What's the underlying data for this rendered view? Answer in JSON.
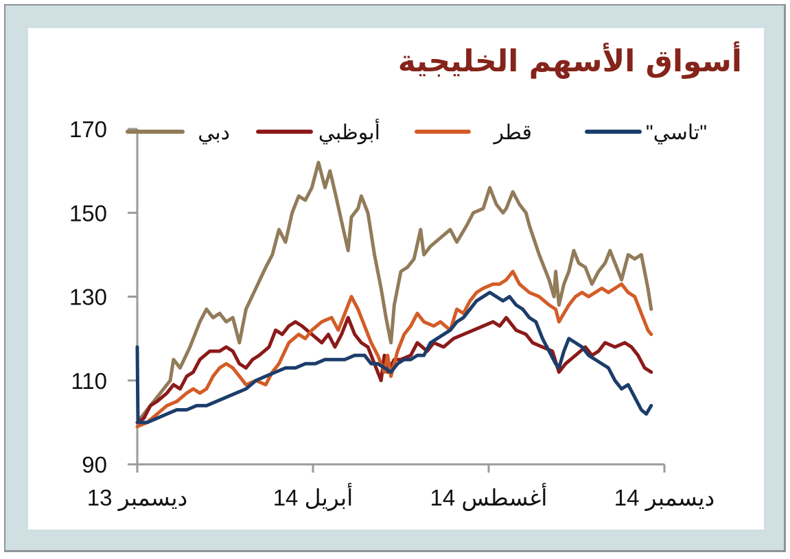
{
  "title": "أسواق الأسهم الخليجية",
  "colors": {
    "frame_bg": "#cfdfe2",
    "frame_border": "#8e9396",
    "title": "#85241a",
    "axis": "#9a9a9a"
  },
  "chart_data": {
    "type": "line",
    "title": "أسواق الأسهم الخليجية",
    "xlabel": "",
    "ylabel": "",
    "ylim": [
      90,
      170
    ],
    "yticks": [
      90,
      110,
      130,
      150,
      170
    ],
    "xticks": [
      "ديسمبر 13",
      "أبريل 14",
      "أغسطس 14",
      "ديسمبر 14"
    ],
    "x_range_months": [
      0,
      12
    ],
    "grid": false,
    "legend_position": "top",
    "series": [
      {
        "name": "دبي",
        "color": "#917b59",
        "points": [
          [
            0,
            100
          ],
          [
            0.2,
            102
          ],
          [
            0.5,
            105
          ],
          [
            0.8,
            108
          ],
          [
            1.0,
            110
          ],
          [
            1.1,
            115
          ],
          [
            1.3,
            113
          ],
          [
            1.6,
            118
          ],
          [
            1.9,
            124
          ],
          [
            2.1,
            127
          ],
          [
            2.3,
            125
          ],
          [
            2.5,
            126
          ],
          [
            2.7,
            124
          ],
          [
            2.9,
            125
          ],
          [
            3.1,
            119
          ],
          [
            3.3,
            127
          ],
          [
            3.6,
            132
          ],
          [
            3.9,
            137
          ],
          [
            4.1,
            140
          ],
          [
            4.3,
            146
          ],
          [
            4.5,
            143
          ],
          [
            4.7,
            150
          ],
          [
            4.9,
            154
          ],
          [
            5.1,
            153
          ],
          [
            5.3,
            156
          ],
          [
            5.5,
            162
          ],
          [
            5.7,
            156
          ],
          [
            5.85,
            160
          ],
          [
            6.0,
            155
          ],
          [
            6.2,
            148
          ],
          [
            6.4,
            141
          ],
          [
            6.5,
            149
          ],
          [
            6.7,
            151
          ],
          [
            6.8,
            154
          ],
          [
            7.0,
            150
          ],
          [
            7.2,
            140
          ],
          [
            7.4,
            132
          ],
          [
            7.55,
            125
          ],
          [
            7.7,
            119
          ],
          [
            7.8,
            128
          ],
          [
            8.0,
            136
          ],
          [
            8.2,
            137
          ],
          [
            8.4,
            139
          ],
          [
            8.6,
            146
          ],
          [
            8.7,
            140
          ],
          [
            8.9,
            142
          ],
          [
            9.2,
            144
          ],
          [
            9.5,
            146
          ],
          [
            9.7,
            143
          ],
          [
            10.0,
            147
          ],
          [
            10.2,
            150
          ],
          [
            10.5,
            151
          ],
          [
            10.7,
            156
          ],
          [
            10.9,
            152
          ],
          [
            11.1,
            150
          ],
          [
            11.2,
            151
          ],
          [
            11.4,
            155
          ],
          [
            11.6,
            152
          ],
          [
            11.8,
            150
          ],
          [
            11.9,
            147
          ],
          [
            12.2,
            140
          ],
          [
            12.5,
            134
          ],
          [
            12.65,
            130
          ],
          [
            12.7,
            136
          ],
          [
            12.8,
            128
          ],
          [
            12.95,
            133
          ],
          [
            13.1,
            136
          ],
          [
            13.25,
            141
          ],
          [
            13.4,
            138
          ],
          [
            13.6,
            137
          ],
          [
            13.8,
            133
          ],
          [
            14.0,
            136
          ],
          [
            14.2,
            138
          ],
          [
            14.35,
            141
          ],
          [
            14.5,
            138
          ],
          [
            14.7,
            134
          ],
          [
            14.9,
            140
          ],
          [
            15.1,
            139
          ],
          [
            15.3,
            140
          ],
          [
            15.5,
            132
          ],
          [
            15.6,
            127
          ]
        ]
      },
      {
        "name": "أبوظبي",
        "color": "#8b1a19",
        "points": [
          [
            0,
            100
          ],
          [
            0.2,
            101
          ],
          [
            0.4,
            104
          ],
          [
            0.6,
            105
          ],
          [
            0.9,
            107
          ],
          [
            1.1,
            109
          ],
          [
            1.3,
            108
          ],
          [
            1.5,
            111
          ],
          [
            1.7,
            112
          ],
          [
            1.9,
            115
          ],
          [
            2.2,
            117
          ],
          [
            2.5,
            117
          ],
          [
            2.7,
            118
          ],
          [
            2.9,
            117
          ],
          [
            3.1,
            114
          ],
          [
            3.3,
            113
          ],
          [
            3.5,
            115
          ],
          [
            3.7,
            116
          ],
          [
            4.0,
            118
          ],
          [
            4.2,
            122
          ],
          [
            4.4,
            121
          ],
          [
            4.6,
            123
          ],
          [
            4.8,
            124
          ],
          [
            5.0,
            123
          ],
          [
            5.3,
            121
          ],
          [
            5.6,
            119
          ],
          [
            5.8,
            121
          ],
          [
            6.0,
            118
          ],
          [
            6.2,
            121
          ],
          [
            6.4,
            125
          ],
          [
            6.6,
            121
          ],
          [
            6.8,
            119
          ],
          [
            7.0,
            118
          ],
          [
            7.2,
            114
          ],
          [
            7.4,
            110
          ],
          [
            7.5,
            116
          ],
          [
            7.6,
            112
          ],
          [
            7.8,
            115
          ],
          [
            8.0,
            115
          ],
          [
            8.3,
            116
          ],
          [
            8.5,
            119
          ],
          [
            8.8,
            117
          ],
          [
            9.0,
            119
          ],
          [
            9.3,
            118
          ],
          [
            9.6,
            120
          ],
          [
            9.9,
            121
          ],
          [
            10.2,
            122
          ],
          [
            10.5,
            123
          ],
          [
            10.8,
            124
          ],
          [
            11.0,
            123
          ],
          [
            11.2,
            125
          ],
          [
            11.5,
            122
          ],
          [
            11.8,
            121
          ],
          [
            12.0,
            119
          ],
          [
            12.3,
            118
          ],
          [
            12.6,
            117
          ],
          [
            12.8,
            112
          ],
          [
            13.0,
            114
          ],
          [
            13.3,
            116
          ],
          [
            13.6,
            118
          ],
          [
            13.8,
            116
          ],
          [
            14.0,
            117
          ],
          [
            14.2,
            119
          ],
          [
            14.5,
            118
          ],
          [
            14.8,
            119
          ],
          [
            15.0,
            118
          ],
          [
            15.2,
            116
          ],
          [
            15.4,
            113
          ],
          [
            15.6,
            112
          ]
        ]
      },
      {
        "name": "قطر",
        "color": "#d35c27",
        "points": [
          [
            0,
            99
          ],
          [
            0.3,
            100
          ],
          [
            0.6,
            102
          ],
          [
            0.9,
            104
          ],
          [
            1.2,
            105
          ],
          [
            1.5,
            107
          ],
          [
            1.7,
            108
          ],
          [
            1.9,
            107
          ],
          [
            2.1,
            108
          ],
          [
            2.3,
            111
          ],
          [
            2.5,
            113
          ],
          [
            2.7,
            114
          ],
          [
            2.9,
            113
          ],
          [
            3.1,
            111
          ],
          [
            3.3,
            109
          ],
          [
            3.6,
            110
          ],
          [
            3.9,
            109
          ],
          [
            4.1,
            112
          ],
          [
            4.3,
            114
          ],
          [
            4.6,
            119
          ],
          [
            4.9,
            121
          ],
          [
            5.1,
            120
          ],
          [
            5.3,
            122
          ],
          [
            5.6,
            124
          ],
          [
            5.9,
            125
          ],
          [
            6.1,
            122
          ],
          [
            6.3,
            126
          ],
          [
            6.5,
            130
          ],
          [
            6.7,
            127
          ],
          [
            6.9,
            123
          ],
          [
            7.1,
            119
          ],
          [
            7.3,
            116
          ],
          [
            7.5,
            112
          ],
          [
            7.6,
            116
          ],
          [
            7.7,
            111
          ],
          [
            7.9,
            117
          ],
          [
            8.1,
            121
          ],
          [
            8.3,
            123
          ],
          [
            8.5,
            126
          ],
          [
            8.7,
            124
          ],
          [
            9.0,
            123
          ],
          [
            9.2,
            124
          ],
          [
            9.5,
            122
          ],
          [
            9.7,
            127
          ],
          [
            9.9,
            126
          ],
          [
            10.1,
            129
          ],
          [
            10.3,
            131
          ],
          [
            10.5,
            132
          ],
          [
            10.8,
            133
          ],
          [
            11.0,
            133
          ],
          [
            11.2,
            134
          ],
          [
            11.4,
            136
          ],
          [
            11.6,
            133
          ],
          [
            11.9,
            131
          ],
          [
            12.2,
            130
          ],
          [
            12.5,
            128
          ],
          [
            12.7,
            127
          ],
          [
            12.8,
            124
          ],
          [
            12.95,
            126
          ],
          [
            13.1,
            128
          ],
          [
            13.3,
            130
          ],
          [
            13.5,
            131
          ],
          [
            13.7,
            130
          ],
          [
            13.9,
            131
          ],
          [
            14.1,
            132
          ],
          [
            14.3,
            131
          ],
          [
            14.5,
            132
          ],
          [
            14.7,
            133
          ],
          [
            14.9,
            131
          ],
          [
            15.1,
            130
          ],
          [
            15.3,
            126
          ],
          [
            15.5,
            122
          ],
          [
            15.6,
            121
          ]
        ]
      },
      {
        "name": "\"تاسي\"",
        "color": "#1b3d6b",
        "points": [
          [
            0,
            118
          ],
          [
            0.02,
            100
          ],
          [
            0.3,
            100
          ],
          [
            0.6,
            101
          ],
          [
            0.9,
            102
          ],
          [
            1.2,
            103
          ],
          [
            1.5,
            103
          ],
          [
            1.8,
            104
          ],
          [
            2.1,
            104
          ],
          [
            2.4,
            105
          ],
          [
            2.7,
            106
          ],
          [
            3.0,
            107
          ],
          [
            3.3,
            108
          ],
          [
            3.6,
            110
          ],
          [
            3.9,
            111
          ],
          [
            4.2,
            112
          ],
          [
            4.5,
            113
          ],
          [
            4.8,
            113
          ],
          [
            5.1,
            114
          ],
          [
            5.4,
            114
          ],
          [
            5.7,
            115
          ],
          [
            6.0,
            115
          ],
          [
            6.3,
            115
          ],
          [
            6.6,
            116
          ],
          [
            6.9,
            116
          ],
          [
            7.1,
            114
          ],
          [
            7.3,
            114
          ],
          [
            7.5,
            113
          ],
          [
            7.7,
            112
          ],
          [
            7.9,
            114
          ],
          [
            8.1,
            115
          ],
          [
            8.3,
            115
          ],
          [
            8.5,
            116
          ],
          [
            8.7,
            116
          ],
          [
            8.9,
            119
          ],
          [
            9.1,
            120
          ],
          [
            9.3,
            121
          ],
          [
            9.5,
            122
          ],
          [
            9.7,
            124
          ],
          [
            9.9,
            125
          ],
          [
            10.1,
            127
          ],
          [
            10.3,
            129
          ],
          [
            10.5,
            130
          ],
          [
            10.7,
            131
          ],
          [
            10.9,
            130
          ],
          [
            11.1,
            129
          ],
          [
            11.3,
            130
          ],
          [
            11.5,
            128
          ],
          [
            11.7,
            127
          ],
          [
            11.9,
            125
          ],
          [
            12.1,
            124
          ],
          [
            12.3,
            120
          ],
          [
            12.5,
            117
          ],
          [
            12.7,
            114
          ],
          [
            12.8,
            113
          ],
          [
            12.95,
            117
          ],
          [
            13.1,
            120
          ],
          [
            13.3,
            119
          ],
          [
            13.5,
            118
          ],
          [
            13.7,
            116
          ],
          [
            13.9,
            115
          ],
          [
            14.1,
            114
          ],
          [
            14.3,
            113
          ],
          [
            14.5,
            110
          ],
          [
            14.7,
            108
          ],
          [
            14.9,
            109
          ],
          [
            15.1,
            106
          ],
          [
            15.3,
            103
          ],
          [
            15.45,
            102
          ],
          [
            15.6,
            104
          ]
        ]
      }
    ]
  },
  "axes": {
    "y_ticks": [
      "170",
      "150",
      "130",
      "110",
      "90"
    ],
    "x_ticks": [
      "ديسمبر 13",
      "أبريل 14",
      "أغسطس 14",
      "ديسمبر 14"
    ]
  },
  "legend": [
    {
      "label": "\"تاسي\"",
      "color": "#1b3d6b"
    },
    {
      "label": "قطر",
      "color": "#d35c27"
    },
    {
      "label": "أبوظبي",
      "color": "#8b1a19"
    },
    {
      "label": "دبي",
      "color": "#917b59"
    }
  ]
}
